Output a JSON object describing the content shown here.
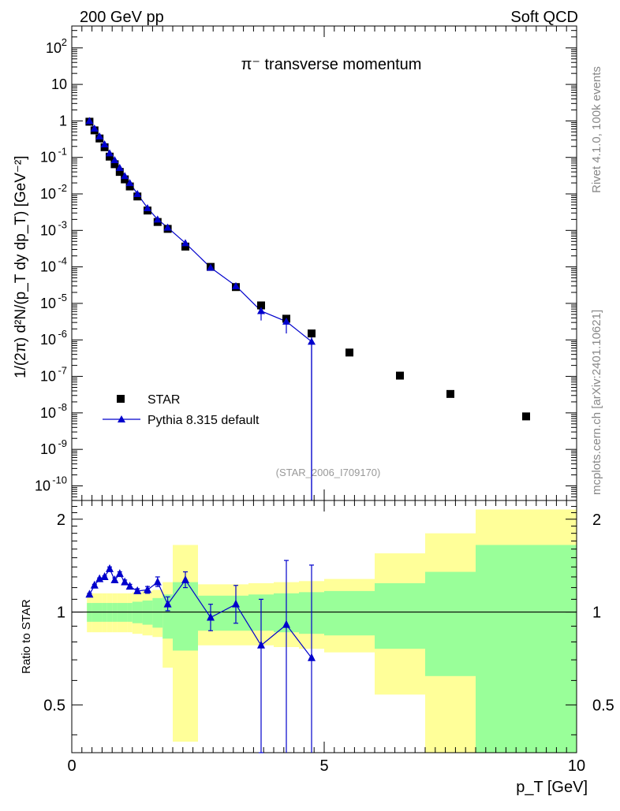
{
  "header": {
    "left": "200 GeV pp",
    "right": "Soft QCD"
  },
  "side": {
    "top": "Rivet 4.1.0,  100k events",
    "bottom": "mcplots.cern.ch [arXiv:2401.10621]"
  },
  "chart_data": [
    {
      "type": "scatter",
      "title": "π⁻ transverse momentum",
      "analysis_label": "(STAR_2006_I709170)",
      "ylabel": "1/(2π)  d²N/(p_T dy dp_T) [GeV⁻²]",
      "xlabel": "p_T [GeV]",
      "xlim": [
        0,
        10
      ],
      "ylim_log10": [
        -10.4,
        2.6
      ],
      "legend": [
        "STAR",
        "Pythia 8.315 default"
      ],
      "legend_position": "lower-left",
      "y_ticks": [
        {
          "label": "10",
          "exp": "-10",
          "v": -10
        },
        {
          "label": "10",
          "exp": "-9",
          "v": -9
        },
        {
          "label": "10",
          "exp": "-8",
          "v": -8
        },
        {
          "label": "10",
          "exp": "-7",
          "v": -7
        },
        {
          "label": "10",
          "exp": "-6",
          "v": -6
        },
        {
          "label": "10",
          "exp": "-5",
          "v": -5
        },
        {
          "label": "10",
          "exp": "-4",
          "v": -4
        },
        {
          "label": "10",
          "exp": "-3",
          "v": -3
        },
        {
          "label": "10",
          "exp": "-2",
          "v": -2
        },
        {
          "label": "10",
          "exp": "-1",
          "v": -1
        },
        {
          "label": "1",
          "exp": "",
          "v": 0
        },
        {
          "label": "10",
          "exp": "",
          "v": 1
        },
        {
          "label": "10",
          "exp": "2",
          "v": 2
        }
      ],
      "series": [
        {
          "name": "STAR",
          "x": [
            0.35,
            0.45,
            0.55,
            0.65,
            0.75,
            0.85,
            0.95,
            1.05,
            1.15,
            1.3,
            1.5,
            1.7,
            1.9,
            2.25,
            2.75,
            3.25,
            3.75,
            4.25,
            4.75,
            5.5,
            6.5,
            7.5,
            9.0
          ],
          "y": [
            0.95,
            0.55,
            0.33,
            0.19,
            0.105,
            0.065,
            0.04,
            0.025,
            0.016,
            0.0085,
            0.0035,
            0.0017,
            0.0011,
            0.00036,
            0.0001,
            2.8e-05,
            8.8e-06,
            3.8e-06,
            1.5e-06,
            4.5e-07,
            1.05e-07,
            3.3e-08,
            8e-09
          ]
        },
        {
          "name": "Pythia 8.315 default",
          "x": [
            0.35,
            0.45,
            0.55,
            0.65,
            0.75,
            0.85,
            0.95,
            1.05,
            1.15,
            1.3,
            1.5,
            1.7,
            1.9,
            2.25,
            2.75,
            3.25,
            3.75,
            4.25,
            4.75
          ],
          "y": [
            1.0,
            0.62,
            0.38,
            0.23,
            0.13,
            0.085,
            0.052,
            0.031,
            0.02,
            0.01,
            0.0041,
            0.002,
            0.0012,
            0.00045,
            9.6e-05,
            3e-05,
            6.2e-06,
            3.2e-06,
            9e-07
          ],
          "y_err_low": [
            0.005,
            0.004,
            0.003,
            0.002,
            0.0015,
            0.001,
            0.0008,
            0.0006,
            0.0004,
            0.0002,
            0.0001,
            5e-05,
            4e-05,
            1e-05,
            4e-06,
            2e-06,
            2.8e-06,
            1.7e-06,
            9e-07
          ],
          "y_err_high": [
            0.005,
            0.004,
            0.003,
            0.002,
            0.0015,
            0.001,
            0.0008,
            0.0006,
            0.0004,
            0.0002,
            0.0001,
            5e-05,
            4e-05,
            1e-05,
            4e-06,
            2e-06,
            2.1e-06,
            1.6e-06,
            5e-07
          ]
        }
      ]
    },
    {
      "type": "scatter",
      "ylabel": "Ratio to STAR",
      "xlabel": "p_T [GeV]",
      "xlim": [
        0,
        10
      ],
      "ylim": [
        0.35,
        2.3
      ],
      "y_scale": "log",
      "y_tick_labels": [
        "0.5",
        "1",
        "2"
      ],
      "x_tick_labels": [
        "0",
        "5",
        "10"
      ],
      "reference_line": 1,
      "bands": [
        {
          "x0": 0.3,
          "x1": 0.4,
          "y_lo": 0.86,
          "y_hi": 1.15,
          "lo2": 0.93,
          "hi2": 1.07
        },
        {
          "x0": 0.4,
          "x1": 0.5,
          "y_lo": 0.86,
          "y_hi": 1.15,
          "lo2": 0.93,
          "hi2": 1.07
        },
        {
          "x0": 0.5,
          "x1": 0.6,
          "y_lo": 0.86,
          "y_hi": 1.15,
          "lo2": 0.93,
          "hi2": 1.07
        },
        {
          "x0": 0.6,
          "x1": 0.7,
          "y_lo": 0.86,
          "y_hi": 1.15,
          "lo2": 0.93,
          "hi2": 1.07
        },
        {
          "x0": 0.7,
          "x1": 0.8,
          "y_lo": 0.86,
          "y_hi": 1.15,
          "lo2": 0.93,
          "hi2": 1.07
        },
        {
          "x0": 0.8,
          "x1": 0.9,
          "y_lo": 0.86,
          "y_hi": 1.15,
          "lo2": 0.93,
          "hi2": 1.07
        },
        {
          "x0": 0.9,
          "x1": 1.0,
          "y_lo": 0.86,
          "y_hi": 1.15,
          "lo2": 0.93,
          "hi2": 1.07
        },
        {
          "x0": 1.0,
          "x1": 1.1,
          "y_lo": 0.86,
          "y_hi": 1.15,
          "lo2": 0.93,
          "hi2": 1.07
        },
        {
          "x0": 1.1,
          "x1": 1.2,
          "y_lo": 0.86,
          "y_hi": 1.15,
          "lo2": 0.93,
          "hi2": 1.07
        },
        {
          "x0": 1.2,
          "x1": 1.4,
          "y_lo": 0.85,
          "y_hi": 1.16,
          "lo2": 0.92,
          "hi2": 1.08
        },
        {
          "x0": 1.4,
          "x1": 1.6,
          "y_lo": 0.84,
          "y_hi": 1.17,
          "lo2": 0.91,
          "hi2": 1.09
        },
        {
          "x0": 1.6,
          "x1": 1.8,
          "y_lo": 0.83,
          "y_hi": 1.18,
          "lo2": 0.89,
          "hi2": 1.11
        },
        {
          "x0": 1.8,
          "x1": 2.0,
          "y_lo": 0.66,
          "y_hi": 1.25,
          "lo2": 0.82,
          "hi2": 1.14
        },
        {
          "x0": 2.0,
          "x1": 2.5,
          "y_lo": 0.38,
          "y_hi": 1.65,
          "lo2": 0.75,
          "hi2": 1.25
        },
        {
          "x0": 2.5,
          "x1": 3.0,
          "y_lo": 0.78,
          "y_hi": 1.23,
          "lo2": 0.87,
          "hi2": 1.13
        },
        {
          "x0": 3.0,
          "x1": 3.5,
          "y_lo": 0.78,
          "y_hi": 1.23,
          "lo2": 0.87,
          "hi2": 1.13
        },
        {
          "x0": 3.5,
          "x1": 4.0,
          "y_lo": 0.78,
          "y_hi": 1.24,
          "lo2": 0.87,
          "hi2": 1.14
        },
        {
          "x0": 4.0,
          "x1": 4.5,
          "y_lo": 0.77,
          "y_hi": 1.25,
          "lo2": 0.86,
          "hi2": 1.15
        },
        {
          "x0": 4.5,
          "x1": 5.0,
          "y_lo": 0.76,
          "y_hi": 1.26,
          "lo2": 0.85,
          "hi2": 1.16
        },
        {
          "x0": 5.0,
          "x1": 6.0,
          "y_lo": 0.74,
          "y_hi": 1.28,
          "lo2": 0.84,
          "hi2": 1.17
        },
        {
          "x0": 6.0,
          "x1": 7.0,
          "y_lo": 0.54,
          "y_hi": 1.55,
          "lo2": 0.76,
          "hi2": 1.24
        },
        {
          "x0": 7.0,
          "x1": 8.0,
          "y_lo": 0.35,
          "y_hi": 1.8,
          "lo2": 0.62,
          "hi2": 1.35
        },
        {
          "x0": 8.0,
          "x1": 10.0,
          "y_lo": 0.35,
          "y_hi": 2.15,
          "lo2": 0.35,
          "hi2": 1.65
        }
      ],
      "series": [
        {
          "name": "Pythia 8.315 default / STAR",
          "x": [
            0.35,
            0.45,
            0.55,
            0.65,
            0.75,
            0.85,
            0.95,
            1.05,
            1.15,
            1.3,
            1.5,
            1.7,
            1.9,
            2.25,
            2.75,
            3.25,
            3.75,
            4.25,
            4.75
          ],
          "y": [
            1.14,
            1.22,
            1.28,
            1.3,
            1.38,
            1.27,
            1.33,
            1.25,
            1.21,
            1.17,
            1.18,
            1.25,
            1.06,
            1.27,
            0.96,
            1.06,
            0.78,
            0.91,
            0.71
          ],
          "y_err_low": [
            0.01,
            0.01,
            0.01,
            0.01,
            0.02,
            0.02,
            0.02,
            0.02,
            0.02,
            0.02,
            0.03,
            0.04,
            0.05,
            0.07,
            0.09,
            0.14,
            0.43,
            0.56,
            0.71
          ],
          "y_err_high": [
            0.01,
            0.01,
            0.01,
            0.01,
            0.02,
            0.02,
            0.02,
            0.02,
            0.02,
            0.02,
            0.03,
            0.05,
            0.06,
            0.08,
            0.1,
            0.16,
            0.32,
            0.56,
            0.71
          ]
        }
      ]
    }
  ]
}
